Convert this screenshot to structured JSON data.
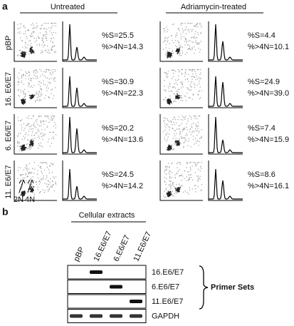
{
  "panel_a": {
    "label": "a",
    "groups": [
      {
        "title": "Untreated"
      },
      {
        "title": "Adriamycin-treated"
      }
    ],
    "rows": [
      "pBP",
      "16. E6/E7",
      "6. E6/E7",
      "11. E6/E7"
    ],
    "stats": [
      [
        [
          "%S=25.5",
          "%>4N=14.3"
        ],
        [
          "%S=4.4",
          "%>4N=10.1"
        ]
      ],
      [
        [
          "%S=30.9",
          "%>4N=22.3"
        ],
        [
          "%S=24.9",
          "%>4N=39.0"
        ]
      ],
      [
        [
          "%S=20.2",
          "%>4N=13.6"
        ],
        [
          "%S=7.4",
          "%>4N=15.9"
        ]
      ],
      [
        [
          "%S=24.5",
          "%>4N=14.2"
        ],
        [
          "%S=8.6",
          "%>4N=16.1"
        ]
      ]
    ],
    "markers": [
      "2N",
      "4N"
    ]
  },
  "panel_b": {
    "label": "b",
    "header": "Cellular extracts",
    "lanes": [
      "pBP",
      "16.E6/E7",
      "6.E6/E7",
      "11.E6/E7"
    ],
    "rows": [
      "16.E6/E7",
      "6.E6/E7",
      "11.E6/E7",
      "GAPDH"
    ],
    "bracket": "Primer Sets"
  }
}
